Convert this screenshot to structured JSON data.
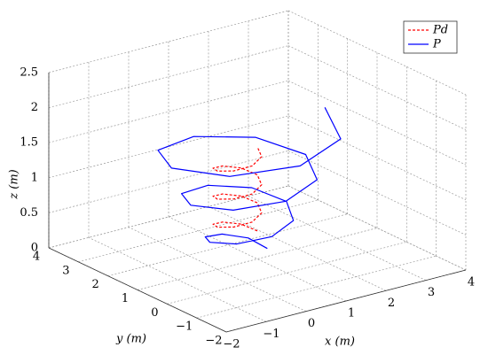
{
  "chart_data": {
    "type": "line3d",
    "xlabel": "x (m)",
    "ylabel": "y (m)",
    "zlabel": "z (m)",
    "xlim": [
      -2,
      4
    ],
    "ylim": [
      -2,
      4
    ],
    "zlim": [
      0,
      2.5
    ],
    "xticks": [
      {
        "value": -2,
        "label": "−2"
      },
      {
        "value": -1,
        "label": "−1"
      },
      0,
      1,
      2,
      3,
      4
    ],
    "yticks": [
      {
        "value": -2,
        "label": "−2"
      },
      {
        "value": -1,
        "label": "−1"
      },
      0,
      1,
      2,
      3,
      4
    ],
    "zticks": [
      0,
      0.5,
      1,
      1.5,
      2,
      2.5
    ],
    "grid": true,
    "legend": "upper right",
    "series": [
      {
        "name": "Pd",
        "color": "#ff0000",
        "dash": true,
        "x": [
          1,
          0.85,
          0.5,
          0.15,
          0,
          0.15,
          0.5,
          0.85,
          1,
          0.85,
          0.5,
          0.15,
          0,
          0.15,
          0.5,
          0.85,
          1,
          0.85,
          0.5,
          0.15,
          0,
          0.15,
          0.5,
          0.85,
          1
        ],
        "y": [
          1,
          1.35,
          1.5,
          1.35,
          1,
          0.65,
          0.5,
          0.65,
          1,
          1.35,
          1.5,
          1.35,
          1,
          0.65,
          0.5,
          0.65,
          1,
          1.35,
          1.5,
          1.35,
          1,
          0.65,
          0.5,
          0.65,
          1
        ],
        "z": [
          0.4,
          0.45,
          0.5,
          0.55,
          0.6,
          0.65,
          0.7,
          0.75,
          0.8,
          0.85,
          0.9,
          0.95,
          1.0,
          1.05,
          1.1,
          1.15,
          1.2,
          1.25,
          1.3,
          1.35,
          1.4,
          1.45,
          1.5,
          1.55,
          1.6
        ]
      },
      {
        "name": "P",
        "color": "#0000ff",
        "dash": false,
        "x": [
          1.4,
          1.27,
          0.8,
          0.25,
          -0.04,
          0.16,
          0.8,
          1.52,
          1.88,
          1.61,
          0.8,
          -0.09,
          -0.52,
          -0.18,
          0.8,
          1.86,
          2.36,
          1.95,
          0.8,
          -0.43,
          -1,
          -0.52,
          0.8,
          2.2,
          2.84
        ],
        "y": [
          1.2,
          1.67,
          1.92,
          1.75,
          1.2,
          0.56,
          0.24,
          0.48,
          1.2,
          2.01,
          2.4,
          2.09,
          1.2,
          0.22,
          -0.24,
          0.14,
          1.2,
          2.35,
          2.88,
          2.43,
          1.2,
          -0.12,
          -0.72,
          -0.2,
          1.2
        ],
        "z": [
          0.05,
          0.125,
          0.2,
          0.275,
          0.35,
          0.425,
          0.5,
          0.575,
          0.65,
          0.725,
          0.8,
          0.875,
          0.95,
          1.025,
          1.1,
          1.175,
          1.25,
          1.325,
          1.4,
          1.475,
          1.55,
          1.625,
          1.7,
          1.775,
          1.85
        ]
      }
    ]
  }
}
